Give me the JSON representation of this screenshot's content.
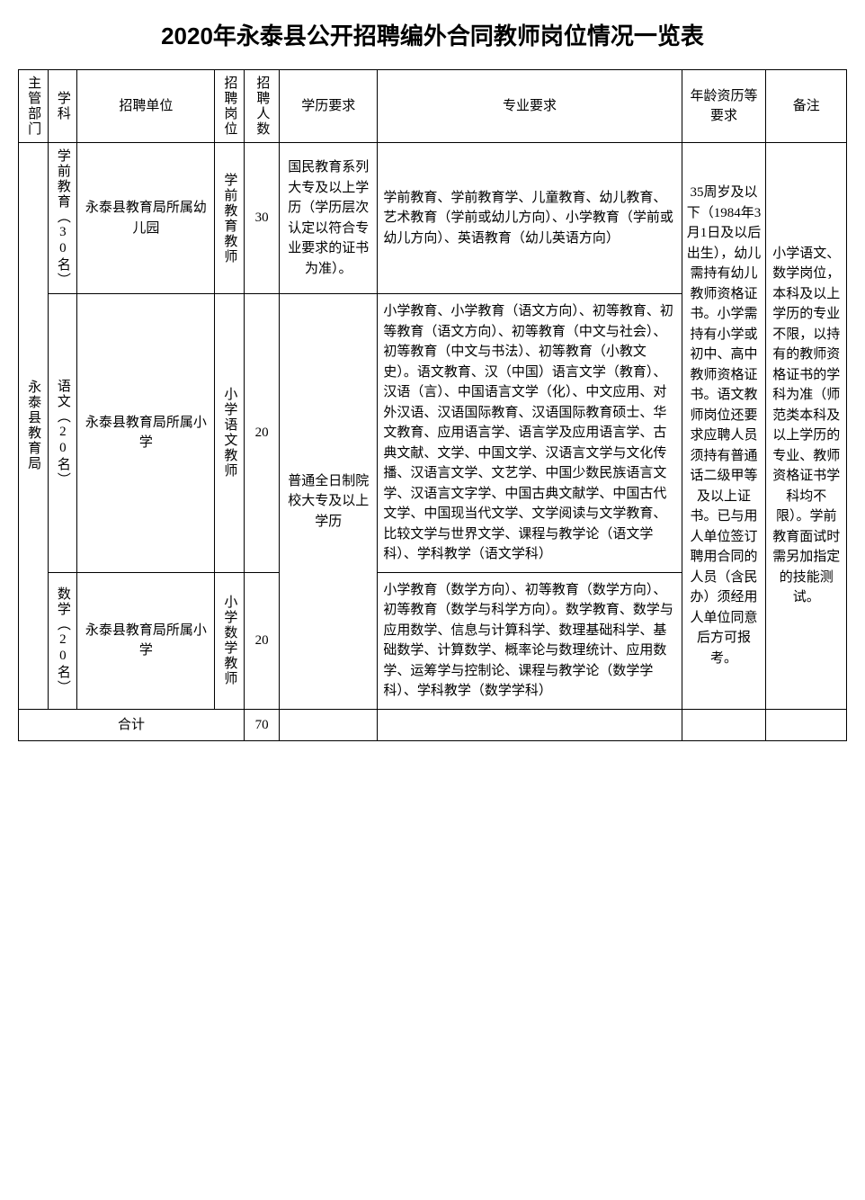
{
  "title": "2020年永泰县公开招聘编外合同教师岗位情况一览表",
  "headers": {
    "dept": "主管部门",
    "subject": "学科",
    "unit": "招聘单位",
    "post": "招聘岗位",
    "count": "招聘人数",
    "edu": "学历要求",
    "major": "专业要求",
    "age": "年龄资历等要求",
    "note": "备注"
  },
  "dept": "永泰县教育局",
  "rows": [
    {
      "subject": "学前教育（30名）",
      "unit": "永泰县教育局所属幼儿园",
      "post": "学前教育教师",
      "count": "30",
      "edu": "国民教育系列大专及以上学历（学历层次认定以符合专业要求的证书为准）。",
      "major": "学前教育、学前教育学、儿童教育、幼儿教育、艺术教育（学前或幼儿方向）、小学教育（学前或幼儿方向）、英语教育（幼儿英语方向）"
    },
    {
      "subject": "语文（20名）",
      "unit": "永泰县教育局所属小学",
      "post": "小学语文教师",
      "count": "20",
      "major": "小学教育、小学教育（语文方向）、初等教育、初等教育（语文方向）、初等教育（中文与社会）、初等教育（中文与书法）、初等教育（小教文史）。语文教育、汉（中国）语言文学（教育）、汉语（言）、中国语言文学（化）、中文应用、对外汉语、汉语国际教育、汉语国际教育硕士、华文教育、应用语言学、语言学及应用语言学、古典文献、文学、中国文学、汉语言文学与文化传播、汉语言文学、文艺学、中国少数民族语言文学、汉语言文字学、中国古典文献学、中国古代文学、中国现当代文学、文学阅读与文学教育、比较文学与世界文学、课程与教学论（语文学科）、学科教学（语文学科）"
    },
    {
      "subject": "数学（20名）",
      "unit": "永泰县教育局所属小学",
      "post": "小学数学教师",
      "count": "20",
      "major": "小学教育（数学方向）、初等教育（数学方向）、初等教育（数学与科学方向）。数学教育、数学与应用数学、信息与计算科学、数理基础科学、基础数学、计算数学、概率论与数理统计、应用数学、运筹学与控制论、课程与教学论（数学学科）、学科教学（数学学科）"
    }
  ],
  "edu_merged": "普通全日制院校大专及以上学历",
  "age_req": "35周岁及以下（1984年3月1日及以后出生），幼儿需持有幼儿教师资格证书。小学需持有小学或初中、高中教师资格证书。语文教师岗位还要求应聘人员须持有普通话二级甲等及以上证书。已与用人单位签订聘用合同的人员（含民办）须经用人单位同意后方可报考。",
  "note": "小学语文、数学岗位，本科及以上学历的专业不限，以持有的教师资格证书的学科为准（师范类本科及以上学历的专业、教师资格证书学科均不限）。学前教育面试时需另加指定的技能测试。",
  "total_label": "合计",
  "total_count": "70"
}
